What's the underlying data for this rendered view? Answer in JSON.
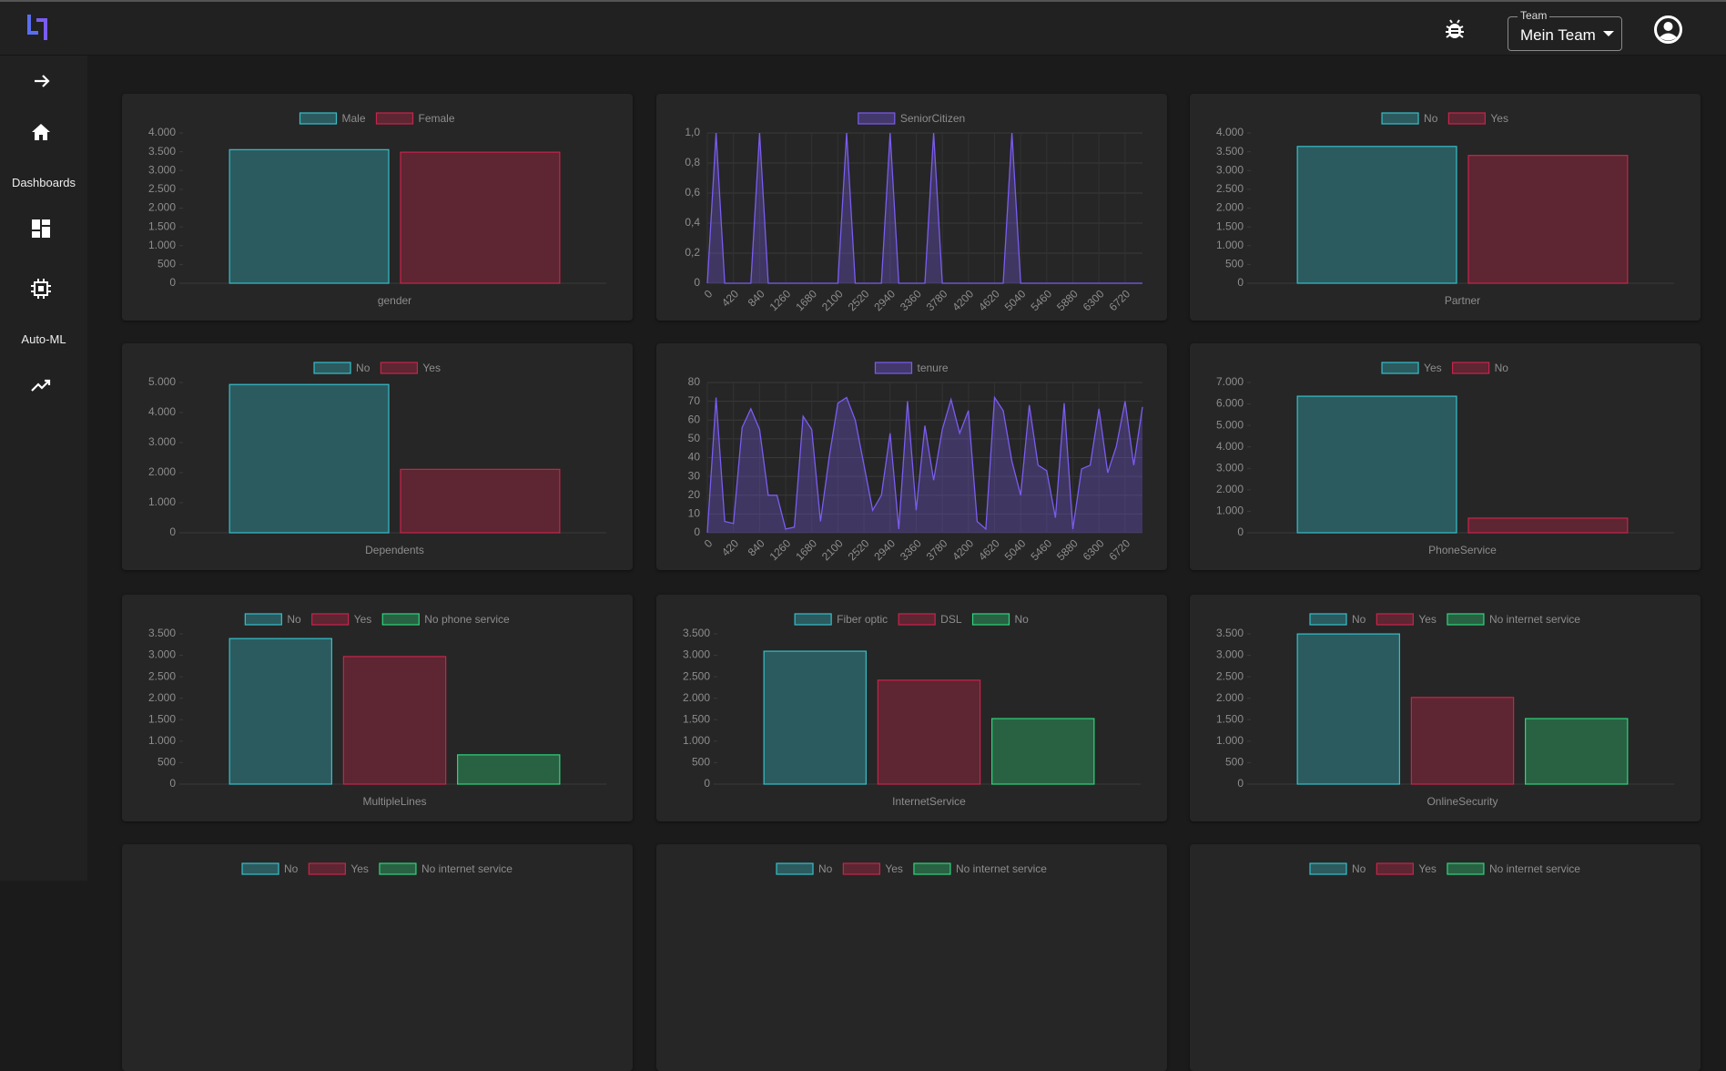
{
  "ui": {
    "team_label": "Team",
    "team_name": "Mein Team",
    "nav": [
      "Dashboards",
      "Auto-ML"
    ]
  },
  "chart_data": [
    {
      "type": "bar",
      "xlabel": "gender",
      "ylim": [
        0,
        4000
      ],
      "yticks": [
        0,
        {
          "value": 500,
          "label": "500"
        },
        {
          "value": 1000,
          "label": "1.000"
        },
        {
          "value": 1500,
          "label": "1.500"
        },
        {
          "value": 2000,
          "label": "2.000"
        },
        {
          "value": 2500,
          "label": "2.500"
        },
        {
          "value": 3000,
          "label": "3.000"
        },
        {
          "value": 3500,
          "label": "3.500"
        },
        {
          "value": 4000,
          "label": "4.000"
        }
      ],
      "series": [
        {
          "name": "Male",
          "color": "#36bfca",
          "values": [
            3555
          ]
        },
        {
          "name": "Female",
          "color": "#c8254b",
          "values": [
            3488
          ]
        }
      ]
    },
    {
      "type": "line",
      "grid": true,
      "xlim": [
        0,
        7000
      ],
      "xticks": [
        0,
        420,
        840,
        1260,
        1680,
        2100,
        2520,
        2940,
        3360,
        3780,
        4200,
        4620,
        5040,
        5460,
        5880,
        6300,
        6720
      ],
      "ylim": [
        0,
        1
      ],
      "yticks": [
        0,
        {
          "value": 0.2,
          "label": "0,2"
        },
        {
          "value": 0.4,
          "label": "0,4"
        },
        {
          "value": 0.6,
          "label": "0,6"
        },
        {
          "value": 0.8,
          "label": "0,8"
        },
        {
          "value": 1,
          "label": "1,0"
        }
      ],
      "x": [
        0,
        140,
        280,
        420,
        560,
        700,
        840,
        980,
        1120,
        1260,
        1400,
        1540,
        1680,
        1820,
        1960,
        2100,
        2240,
        2380,
        2520,
        2660,
        2800,
        2940,
        3080,
        3220,
        3360,
        3500,
        3640,
        3780,
        3920,
        4060,
        4200,
        4340,
        4480,
        4620,
        4760,
        4900,
        5040,
        5180,
        5320,
        5460,
        5600,
        5740,
        5880,
        6020,
        6160,
        6300,
        6440,
        6580,
        6720,
        6860,
        7000
      ],
      "series": [
        {
          "name": "SeniorCitizen",
          "color": "#7b5cf0",
          "values": [
            0,
            1,
            0,
            0,
            0,
            0,
            1,
            0,
            0,
            0,
            0,
            0,
            0,
            0,
            0,
            0,
            1,
            0,
            0,
            0,
            0,
            1,
            0,
            0,
            0,
            0,
            1,
            0,
            0,
            0,
            0,
            0,
            0,
            0,
            0,
            1,
            0,
            0,
            0,
            0,
            0,
            0,
            0,
            0,
            0,
            0,
            0,
            0,
            0,
            0,
            0
          ]
        }
      ]
    },
    {
      "type": "bar",
      "xlabel": "Partner",
      "ylim": [
        0,
        4000
      ],
      "yticks": [
        0,
        {
          "value": 500,
          "label": "500"
        },
        {
          "value": 1000,
          "label": "1.000"
        },
        {
          "value": 1500,
          "label": "1.500"
        },
        {
          "value": 2000,
          "label": "2.000"
        },
        {
          "value": 2500,
          "label": "2.500"
        },
        {
          "value": 3000,
          "label": "3.000"
        },
        {
          "value": 3500,
          "label": "3.500"
        },
        {
          "value": 4000,
          "label": "4.000"
        }
      ],
      "series": [
        {
          "name": "No",
          "color": "#36bfca",
          "values": [
            3641
          ]
        },
        {
          "name": "Yes",
          "color": "#c8254b",
          "values": [
            3402
          ]
        }
      ]
    },
    {
      "type": "bar",
      "xlabel": "Dependents",
      "ylim": [
        0,
        5000
      ],
      "yticks": [
        0,
        {
          "value": 1000,
          "label": "1.000"
        },
        {
          "value": 2000,
          "label": "2.000"
        },
        {
          "value": 3000,
          "label": "3.000"
        },
        {
          "value": 4000,
          "label": "4.000"
        },
        {
          "value": 5000,
          "label": "5.000"
        }
      ],
      "series": [
        {
          "name": "No",
          "color": "#36bfca",
          "values": [
            4933
          ]
        },
        {
          "name": "Yes",
          "color": "#c8254b",
          "values": [
            2110
          ]
        }
      ]
    },
    {
      "type": "line",
      "grid": true,
      "xlim": [
        0,
        7000
      ],
      "xticks": [
        0,
        420,
        840,
        1260,
        1680,
        2100,
        2520,
        2940,
        3360,
        3780,
        4200,
        4620,
        5040,
        5460,
        5880,
        6300,
        6720
      ],
      "ylim": [
        0,
        80
      ],
      "yticks": [
        0,
        10,
        20,
        30,
        40,
        50,
        60,
        70,
        80
      ],
      "x": [
        0,
        140,
        280,
        420,
        560,
        700,
        840,
        980,
        1120,
        1260,
        1400,
        1540,
        1680,
        1820,
        1960,
        2100,
        2240,
        2380,
        2520,
        2660,
        2800,
        2940,
        3080,
        3220,
        3360,
        3500,
        3640,
        3780,
        3920,
        4060,
        4200,
        4340,
        4480,
        4620,
        4760,
        4900,
        5040,
        5180,
        5320,
        5460,
        5600,
        5740,
        5880,
        6020,
        6160,
        6300,
        6440,
        6580,
        6720,
        6860,
        7000
      ],
      "series": [
        {
          "name": "tenure",
          "color": "#7b5cf0",
          "values": [
            0,
            72,
            6,
            5,
            56,
            66,
            55,
            20,
            20,
            2,
            3,
            62,
            55,
            6,
            40,
            69,
            72,
            60,
            36,
            12,
            20,
            53,
            2,
            70,
            12,
            57,
            28,
            55,
            71,
            53,
            65,
            6,
            2,
            72,
            65,
            38,
            20,
            68,
            36,
            33,
            8,
            69,
            2,
            34,
            36,
            66,
            32,
            46,
            70,
            36,
            67
          ]
        }
      ]
    },
    {
      "type": "bar",
      "xlabel": "PhoneService",
      "ylim": [
        0,
        7000
      ],
      "yticks": [
        0,
        {
          "value": 1000,
          "label": "1.000"
        },
        {
          "value": 2000,
          "label": "2.000"
        },
        {
          "value": 3000,
          "label": "3.000"
        },
        {
          "value": 4000,
          "label": "4.000"
        },
        {
          "value": 5000,
          "label": "5.000"
        },
        {
          "value": 6000,
          "label": "6.000"
        },
        {
          "value": 7000,
          "label": "7.000"
        }
      ],
      "series": [
        {
          "name": "Yes",
          "color": "#36bfca",
          "values": [
            6361
          ]
        },
        {
          "name": "No",
          "color": "#c8254b",
          "values": [
            682
          ]
        }
      ]
    },
    {
      "type": "bar",
      "xlabel": "MultipleLines",
      "ylim": [
        0,
        3500
      ],
      "yticks": [
        0,
        {
          "value": 500,
          "label": "500"
        },
        {
          "value": 1000,
          "label": "1.000"
        },
        {
          "value": 1500,
          "label": "1.500"
        },
        {
          "value": 2000,
          "label": "2.000"
        },
        {
          "value": 2500,
          "label": "2.500"
        },
        {
          "value": 3000,
          "label": "3.000"
        },
        {
          "value": 3500,
          "label": "3.500"
        }
      ],
      "series": [
        {
          "name": "No",
          "color": "#36bfca",
          "values": [
            3390
          ]
        },
        {
          "name": "Yes",
          "color": "#c8254b",
          "values": [
            2971
          ]
        },
        {
          "name": "No phone service",
          "color": "#2fd47c",
          "values": [
            682
          ]
        }
      ]
    },
    {
      "type": "bar",
      "xlabel": "InternetService",
      "ylim": [
        0,
        3500
      ],
      "yticks": [
        0,
        {
          "value": 500,
          "label": "500"
        },
        {
          "value": 1000,
          "label": "1.000"
        },
        {
          "value": 1500,
          "label": "1.500"
        },
        {
          "value": 2000,
          "label": "2.000"
        },
        {
          "value": 2500,
          "label": "2.500"
        },
        {
          "value": 3000,
          "label": "3.000"
        },
        {
          "value": 3500,
          "label": "3.500"
        }
      ],
      "series": [
        {
          "name": "Fiber optic",
          "color": "#36bfca",
          "values": [
            3096
          ]
        },
        {
          "name": "DSL",
          "color": "#c8254b",
          "values": [
            2421
          ]
        },
        {
          "name": "No",
          "color": "#2fd47c",
          "values": [
            1526
          ]
        }
      ]
    },
    {
      "type": "bar",
      "xlabel": "OnlineSecurity",
      "ylim": [
        0,
        3500
      ],
      "yticks": [
        0,
        {
          "value": 500,
          "label": "500"
        },
        {
          "value": 1000,
          "label": "1.000"
        },
        {
          "value": 1500,
          "label": "1.500"
        },
        {
          "value": 2000,
          "label": "2.000"
        },
        {
          "value": 2500,
          "label": "2.500"
        },
        {
          "value": 3000,
          "label": "3.000"
        },
        {
          "value": 3500,
          "label": "3.500"
        }
      ],
      "series": [
        {
          "name": "No",
          "color": "#36bfca",
          "values": [
            3498
          ]
        },
        {
          "name": "Yes",
          "color": "#c8254b",
          "values": [
            2019
          ]
        },
        {
          "name": "No internet service",
          "color": "#2fd47c",
          "values": [
            1526
          ]
        }
      ]
    },
    {
      "type": "bar",
      "series": [
        {
          "name": "No",
          "color": "#36bfca"
        },
        {
          "name": "Yes",
          "color": "#c8254b"
        },
        {
          "name": "No internet service",
          "color": "#2fd47c"
        }
      ]
    },
    {
      "type": "bar",
      "series": [
        {
          "name": "No",
          "color": "#36bfca"
        },
        {
          "name": "Yes",
          "color": "#c8254b"
        },
        {
          "name": "No internet service",
          "color": "#2fd47c"
        }
      ]
    },
    {
      "type": "bar",
      "series": [
        {
          "name": "No",
          "color": "#36bfca"
        },
        {
          "name": "Yes",
          "color": "#c8254b"
        },
        {
          "name": "No internet service",
          "color": "#2fd47c"
        }
      ]
    }
  ]
}
